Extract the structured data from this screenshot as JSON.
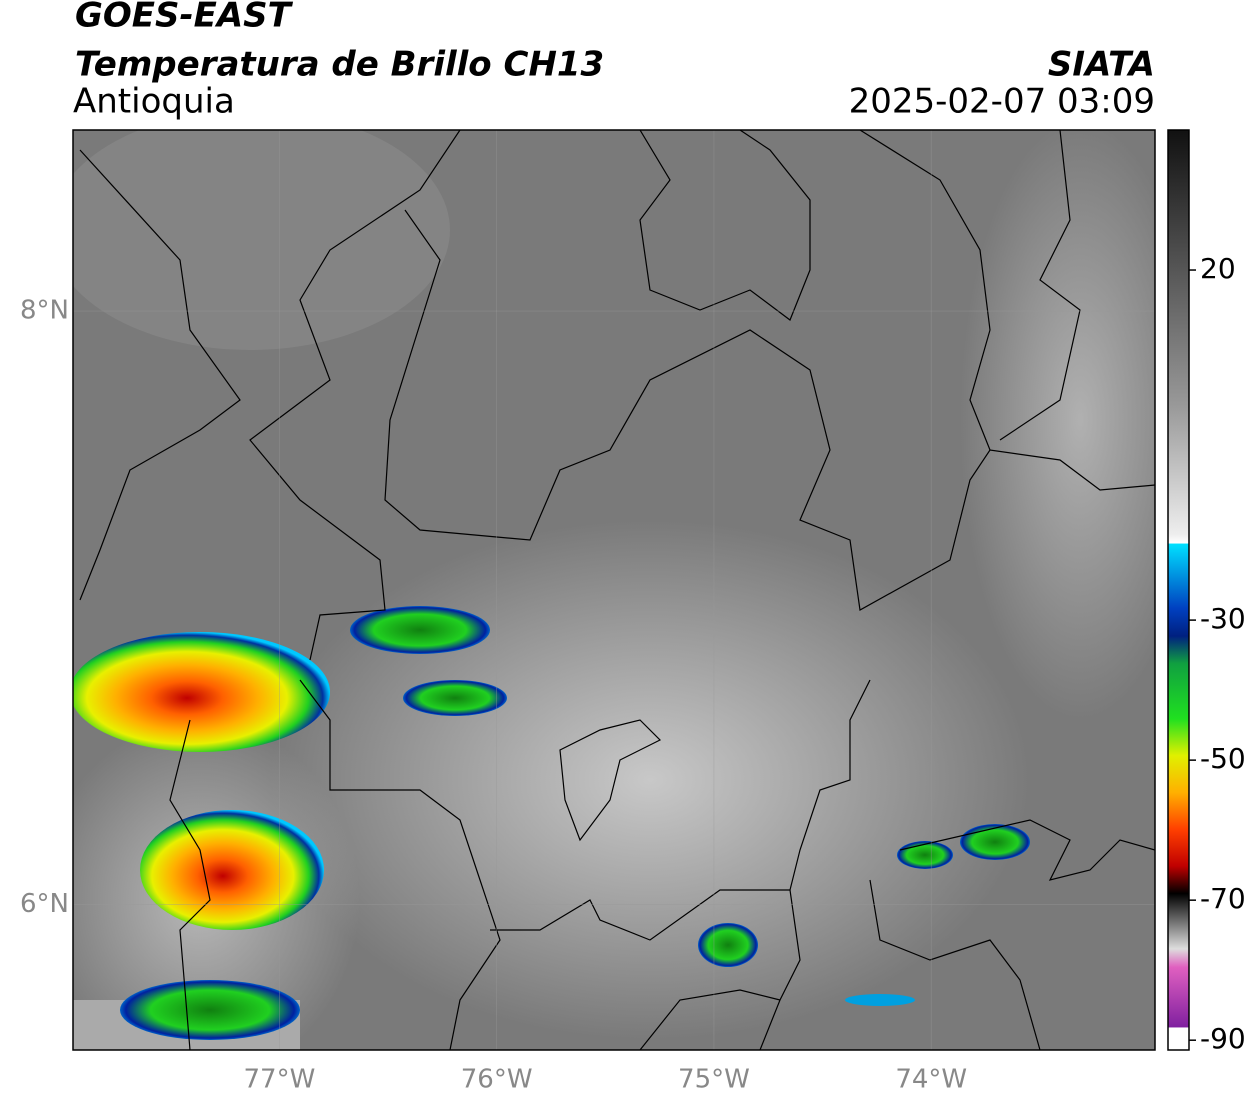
{
  "header": {
    "satellite": "GOES-EAST",
    "product": "Temperatura de Brillo CH13",
    "region": "Antioquia",
    "source": "SIATA",
    "datetime": "2025-02-07 03:09"
  },
  "map": {
    "xlim": [
      -77.95,
      -72.97
    ],
    "ylim": [
      5.51,
      8.61
    ],
    "xticks": [
      {
        "value": -77,
        "label": "77°W"
      },
      {
        "value": -76,
        "label": "76°W"
      },
      {
        "value": -75,
        "label": "75°W"
      },
      {
        "value": -74,
        "label": "74°W"
      }
    ],
    "yticks": [
      {
        "value": 8,
        "label": "8°N"
      },
      {
        "value": 6,
        "label": "6°N"
      }
    ]
  },
  "colorbar": {
    "lim": [
      -91.4,
      40
    ],
    "ticks": [
      20,
      -30,
      -50,
      -70,
      -90
    ]
  }
}
